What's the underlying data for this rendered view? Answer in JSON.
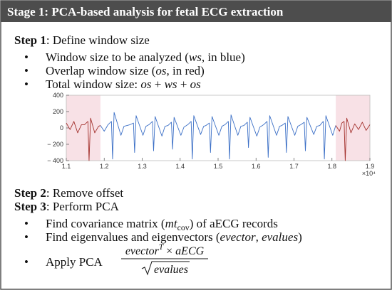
{
  "header": {
    "title": "Stage 1: PCA-based analysis for fetal ECG extraction"
  },
  "step1": {
    "label": "Step 1",
    "text": ": Define window size",
    "bullets": [
      [
        {
          "text": "Window size to be analyzed ("
        },
        {
          "text": "ws",
          "style": "italic"
        },
        {
          "text": ", in blue)"
        }
      ],
      [
        {
          "text": "Overlap window size ("
        },
        {
          "text": "os",
          "style": "italic"
        },
        {
          "text": ", in red)"
        }
      ],
      [
        {
          "text": "Total window size: "
        },
        {
          "text": "os",
          "style": "italic"
        },
        {
          "text": " + "
        },
        {
          "text": "ws",
          "style": "italic"
        },
        {
          "text": " + "
        },
        {
          "text": "os",
          "style": "italic"
        }
      ]
    ]
  },
  "chart_data": {
    "type": "line",
    "series": [
      {
        "color": "#a3302c",
        "band_color": "#f8e1e6",
        "x": [
          1.1,
          1.11,
          1.12,
          1.13,
          1.14,
          1.148,
          1.157,
          1.16,
          1.164,
          1.175,
          1.185,
          1.19
        ],
        "values": [
          60,
          -20,
          80,
          -60,
          40,
          40,
          80,
          -400,
          120,
          -60,
          20,
          30
        ]
      },
      {
        "color": "#3b6fc6",
        "x": [
          1.19,
          1.2,
          1.21,
          1.219,
          1.222,
          1.226,
          1.244,
          1.252,
          1.268,
          1.277,
          1.28,
          1.284,
          1.302,
          1.31,
          1.318,
          1.327,
          1.33,
          1.334,
          1.352,
          1.36,
          1.368,
          1.377,
          1.38,
          1.384,
          1.402,
          1.41,
          1.42,
          1.429,
          1.432,
          1.436,
          1.454,
          1.462,
          1.468,
          1.477,
          1.48,
          1.484,
          1.502,
          1.51,
          1.518,
          1.527,
          1.53,
          1.534,
          1.552,
          1.56,
          1.568,
          1.577,
          1.58,
          1.584,
          1.602,
          1.61,
          1.62,
          1.629,
          1.632,
          1.636,
          1.654,
          1.662,
          1.668,
          1.677,
          1.68,
          1.684,
          1.702,
          1.71,
          1.718,
          1.727,
          1.73,
          1.734,
          1.752,
          1.76,
          1.768,
          1.777,
          1.78,
          1.784,
          1.802,
          1.81
        ],
        "values": [
          30,
          -40,
          40,
          80,
          -380,
          190,
          -90,
          20,
          40,
          60,
          -300,
          150,
          -90,
          20,
          40,
          80,
          -280,
          140,
          -100,
          20,
          30,
          70,
          -260,
          130,
          -90,
          10,
          40,
          80,
          -380,
          150,
          -80,
          20,
          30,
          60,
          -300,
          140,
          -90,
          20,
          40,
          80,
          -380,
          160,
          -90,
          20,
          30,
          70,
          -240,
          130,
          -100,
          10,
          40,
          80,
          -360,
          150,
          -90,
          20,
          30,
          60,
          -300,
          140,
          -90,
          20,
          40,
          70,
          -280,
          130,
          -80,
          20,
          30,
          80,
          -380,
          150,
          -90,
          30
        ]
      },
      {
        "color": "#a3302c",
        "band_color": "#f8e1e6",
        "x": [
          1.81,
          1.82,
          1.826,
          1.832,
          1.835,
          1.839,
          1.85,
          1.86,
          1.87,
          1.88,
          1.89,
          1.9
        ],
        "values": [
          30,
          -40,
          60,
          80,
          -400,
          120,
          -60,
          50,
          -20,
          70,
          -30,
          40
        ]
      }
    ],
    "xlim": [
      1.1,
      1.9
    ],
    "ylim": [
      -400,
      400
    ],
    "xticks": [
      1.1,
      1.2,
      1.3,
      1.4,
      1.5,
      1.6,
      1.7,
      1.8,
      1.9
    ],
    "yticks": [
      {
        "value": -400,
        "label": "− 400"
      },
      {
        "value": -200,
        "label": "− 200"
      },
      0,
      200,
      400
    ],
    "x_multiplier_label": "×10⁴"
  },
  "step2": {
    "label": "Step 2",
    "text": ": Remove offset"
  },
  "step3": {
    "label": "Step 3",
    "text": ": Perform PCA",
    "bullets": [
      [
        {
          "text": "Find covariance matrix ("
        },
        {
          "text": "mt",
          "style": "italic"
        },
        {
          "text": "cov",
          "style": "sub"
        },
        {
          "text": ") of aECG records"
        }
      ],
      [
        {
          "text": "Find eigenvalues and eigenvectors ("
        },
        {
          "text": "evector",
          "style": "italic"
        },
        {
          "text": ", "
        },
        {
          "text": "evalues",
          "style": "italic"
        },
        {
          "text": ")"
        }
      ]
    ],
    "apply": {
      "text": "Apply PCA",
      "numerator": [
        {
          "text": "evector",
          "style": "italic"
        },
        {
          "text": "T",
          "style": "sup"
        },
        {
          "text": " × "
        },
        {
          "text": "aECG",
          "style": "italic"
        }
      ],
      "denominator": [
        {
          "text": "evalues",
          "style": "italic"
        }
      ]
    }
  }
}
